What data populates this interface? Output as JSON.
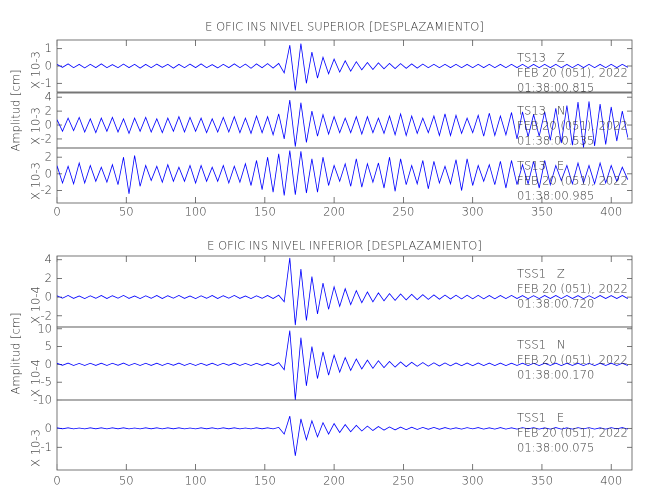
{
  "chart_data": [
    {
      "type": "line",
      "title": "E OFIC INS NIVEL SUPERIOR [DESPLAZAMIENTO]",
      "ylabel": "Amplitud [cm]",
      "color": "#0000ff",
      "xlim": [
        0,
        415
      ],
      "xticks": [
        0,
        50,
        100,
        150,
        200,
        250,
        300,
        350,
        400
      ],
      "x": [
        0,
        4,
        8,
        12,
        16,
        20,
        24,
        28,
        32,
        36,
        40,
        44,
        48,
        52,
        56,
        60,
        64,
        68,
        72,
        76,
        80,
        84,
        88,
        92,
        96,
        100,
        104,
        108,
        112,
        116,
        120,
        124,
        128,
        132,
        136,
        140,
        144,
        148,
        152,
        156,
        160,
        164,
        168,
        172,
        176,
        180,
        184,
        188,
        192,
        196,
        200,
        204,
        208,
        212,
        216,
        220,
        224,
        228,
        232,
        236,
        240,
        244,
        248,
        252,
        256,
        260,
        264,
        268,
        272,
        276,
        280,
        284,
        288,
        292,
        296,
        300,
        304,
        308,
        312,
        316,
        320,
        324,
        328,
        332,
        336,
        340,
        344,
        348,
        352,
        356,
        360,
        364,
        368,
        372,
        376,
        380,
        384,
        388,
        392,
        396,
        400,
        404,
        408,
        412
      ],
      "panels": [
        {
          "scale_label": "X 10-3",
          "ylim": [
            -1.5,
            1.5
          ],
          "yticks": [
            1,
            0,
            -1
          ],
          "labels": [
            "TS13   Z",
            "FEB 20 (051), 2022",
            "01:38:00.815"
          ],
          "values": [
            0.1,
            -0.08,
            0.12,
            -0.1,
            0.09,
            -0.11,
            0.1,
            -0.09,
            0.12,
            -0.1,
            0.08,
            -0.1,
            0.11,
            -0.09,
            0.1,
            -0.12,
            0.09,
            -0.1,
            0.11,
            -0.08,
            0.1,
            -0.12,
            0.09,
            -0.1,
            0.11,
            -0.09,
            0.12,
            -0.1,
            0.08,
            -0.11,
            0.1,
            -0.09,
            0.12,
            -0.1,
            0.11,
            -0.13,
            0.12,
            -0.1,
            0.14,
            -0.12,
            0.15,
            -0.4,
            1.2,
            -1.4,
            1.3,
            -1.0,
            0.8,
            -0.7,
            0.5,
            -0.45,
            0.4,
            -0.35,
            0.3,
            -0.3,
            0.25,
            -0.22,
            0.2,
            -0.2,
            0.18,
            -0.16,
            0.15,
            -0.15,
            0.14,
            -0.13,
            0.12,
            -0.12,
            0.11,
            -0.1,
            0.1,
            -0.1,
            0.1,
            -0.09,
            0.1,
            -0.1,
            0.09,
            -0.1,
            0.1,
            -0.09,
            0.1,
            -0.1,
            0.09,
            -0.1,
            0.1,
            -0.09,
            0.1,
            -0.1,
            0.09,
            -0.1,
            0.1,
            -0.09,
            0.1,
            -0.1,
            0.09,
            -0.1,
            0.1,
            -0.09,
            0.1,
            -0.1,
            0.09,
            -0.1,
            0.1,
            -0.09,
            0.1,
            -0.08
          ]
        },
        {
          "scale_label": "X 10-3",
          "ylim": [
            -3.3,
            4.6
          ],
          "yticks": [
            4,
            2,
            0,
            -2
          ],
          "labels": [
            "TS13   N",
            "FEB 20 (051), 2022",
            "01:38:00.535"
          ],
          "values": [
            0.8,
            -0.9,
            1.0,
            -0.8,
            1.1,
            -1.0,
            0.9,
            -1.1,
            1.0,
            -0.9,
            1.1,
            -1.0,
            0.9,
            -1.2,
            1.0,
            -0.9,
            1.1,
            -1.0,
            0.9,
            -1.1,
            1.0,
            -0.9,
            1.2,
            -1.0,
            1.1,
            -0.9,
            1.0,
            -1.1,
            0.9,
            -1.0,
            1.1,
            -1.0,
            1.2,
            -1.1,
            1.0,
            -1.2,
            1.3,
            -1.1,
            1.2,
            -1.4,
            1.6,
            -2.0,
            3.6,
            -3.1,
            3.2,
            -2.5,
            2.0,
            -1.6,
            1.5,
            -1.3,
            1.2,
            -1.1,
            1.0,
            -1.1,
            1.2,
            -1.3,
            1.2,
            -1.1,
            1.0,
            -1.2,
            1.3,
            -1.4,
            1.6,
            -1.5,
            1.3,
            -1.2,
            1.0,
            -1.1,
            1.3,
            -1.5,
            1.6,
            -1.5,
            1.4,
            -1.2,
            1.0,
            -1.1,
            1.4,
            -1.6,
            1.7,
            -1.5,
            1.3,
            -1.4,
            1.8,
            -2.0,
            1.9,
            -1.7,
            1.5,
            -1.6,
            1.9,
            -2.2,
            2.4,
            -2.6,
            2.8,
            -2.9,
            3.3,
            -3.2,
            3.4,
            -3.0,
            3.0,
            -2.8,
            2.6,
            -2.3,
            2.0,
            -1.8
          ]
        },
        {
          "scale_label": "X 10-3",
          "ylim": [
            -3.5,
            3.1
          ],
          "yticks": [
            2,
            0,
            -2
          ],
          "labels": [
            "TS13   E",
            "FEB 20 (051), 2022",
            "01:38:00.985"
          ],
          "values": [
            1.0,
            -1.1,
            0.9,
            -1.2,
            1.3,
            -1.1,
            1.0,
            -0.9,
            0.8,
            -1.0,
            1.1,
            -1.3,
            2.0,
            -2.4,
            2.2,
            -1.5,
            1.0,
            -0.8,
            0.9,
            -1.0,
            1.1,
            -0.9,
            0.8,
            -0.9,
            1.0,
            -1.1,
            1.0,
            -0.9,
            0.8,
            -0.9,
            1.0,
            -1.1,
            0.9,
            -1.0,
            1.2,
            -1.4,
            1.6,
            -1.9,
            2.0,
            -2.2,
            2.4,
            -2.6,
            2.8,
            -2.5,
            2.7,
            -2.3,
            1.8,
            -2.2,
            2.0,
            -1.4,
            1.0,
            -0.9,
            1.2,
            -1.5,
            1.8,
            -1.6,
            1.2,
            -1.0,
            1.3,
            -1.7,
            2.0,
            -2.1,
            1.8,
            -1.3,
            1.0,
            -1.2,
            1.6,
            -1.8,
            1.5,
            -1.1,
            0.9,
            -1.2,
            1.7,
            -2.0,
            1.8,
            -1.4,
            1.0,
            -0.9,
            1.1,
            -1.3,
            1.5,
            -1.7,
            1.6,
            -1.3,
            1.1,
            -1.2,
            1.5,
            -1.7,
            1.6,
            -1.3,
            1.0,
            -0.8,
            1.0,
            -1.2,
            1.3,
            -1.1,
            1.0,
            -1.2,
            1.3,
            -1.1,
            1.0,
            -0.9,
            0.8,
            -0.7
          ]
        }
      ]
    },
    {
      "type": "line",
      "title": "E OFIC INS NIVEL INFERIOR [DESPLAZAMIENTO]",
      "ylabel": "Amplitud [cm]",
      "color": "#0000ff",
      "xlim": [
        0,
        415
      ],
      "xticks": [
        0,
        50,
        100,
        150,
        200,
        250,
        300,
        350,
        400
      ],
      "x": [
        0,
        4,
        8,
        12,
        16,
        20,
        24,
        28,
        32,
        36,
        40,
        44,
        48,
        52,
        56,
        60,
        64,
        68,
        72,
        76,
        80,
        84,
        88,
        92,
        96,
        100,
        104,
        108,
        112,
        116,
        120,
        124,
        128,
        132,
        136,
        140,
        144,
        148,
        152,
        156,
        160,
        164,
        168,
        172,
        176,
        180,
        184,
        188,
        192,
        196,
        200,
        204,
        208,
        212,
        216,
        220,
        224,
        228,
        232,
        236,
        240,
        244,
        248,
        252,
        256,
        260,
        264,
        268,
        272,
        276,
        280,
        284,
        288,
        292,
        296,
        300,
        304,
        308,
        312,
        316,
        320,
        324,
        328,
        332,
        336,
        340,
        344,
        348,
        352,
        356,
        360,
        364,
        368,
        372,
        376,
        380,
        384,
        388,
        392,
        396,
        400,
        404,
        408,
        412
      ],
      "panels": [
        {
          "scale_label": "X 10-4",
          "ylim": [
            -3.2,
            4.4
          ],
          "yticks": [
            4,
            2,
            0,
            -2
          ],
          "labels": [
            "TSS1   Z",
            "FEB 20 (051), 2022",
            "01:38:00.720"
          ],
          "values": [
            0.15,
            -0.12,
            0.18,
            -0.14,
            0.12,
            -0.16,
            0.14,
            -0.13,
            0.17,
            -0.15,
            0.15,
            -0.12,
            0.18,
            -0.14,
            0.12,
            -0.16,
            0.14,
            -0.13,
            0.17,
            -0.15,
            0.15,
            -0.12,
            0.18,
            -0.14,
            0.12,
            -0.16,
            0.14,
            -0.13,
            0.17,
            -0.15,
            0.15,
            -0.12,
            0.18,
            -0.14,
            0.12,
            -0.16,
            0.14,
            -0.13,
            0.17,
            -0.15,
            0.2,
            -0.5,
            4.2,
            -3.0,
            3.0,
            -2.5,
            2.2,
            -1.8,
            1.5,
            -1.3,
            1.1,
            -1.0,
            0.9,
            -0.8,
            0.7,
            -0.6,
            0.55,
            -0.5,
            0.45,
            -0.4,
            0.38,
            -0.35,
            0.33,
            -0.3,
            0.3,
            -0.28,
            0.26,
            -0.25,
            0.24,
            -0.22,
            0.22,
            -0.2,
            0.2,
            -0.19,
            0.2,
            -0.18,
            0.19,
            -0.18,
            0.17,
            -0.18,
            0.17,
            -0.16,
            0.18,
            -0.15,
            0.16,
            -0.17,
            0.15,
            -0.16,
            0.17,
            -0.15,
            0.17,
            -0.16,
            0.18,
            -0.15,
            0.16,
            -0.17,
            0.15,
            -0.16,
            0.17,
            -0.15,
            0.16,
            -0.15,
            0.17,
            -0.16
          ]
        },
        {
          "scale_label": "X 10-4",
          "ylim": [
            -10,
            10.5
          ],
          "yticks": [
            10,
            5,
            0,
            -5,
            -10
          ],
          "labels": [
            "TSS1   N",
            "FEB 20 (051), 2022",
            "01:38:00.170"
          ],
          "values": [
            0.3,
            -0.25,
            0.35,
            -0.3,
            0.28,
            -0.32,
            0.3,
            -0.27,
            0.33,
            -0.3,
            0.3,
            -0.25,
            0.35,
            -0.3,
            0.28,
            -0.32,
            0.3,
            -0.27,
            0.33,
            -0.3,
            0.3,
            -0.25,
            0.35,
            -0.3,
            0.28,
            -0.32,
            0.3,
            -0.27,
            0.33,
            -0.3,
            0.3,
            -0.25,
            0.35,
            -0.3,
            0.28,
            -0.32,
            0.3,
            -0.27,
            0.33,
            -0.3,
            0.5,
            -1.5,
            9.5,
            -10,
            7.5,
            -6,
            5,
            -4,
            3.5,
            -3,
            2.6,
            -2.2,
            1.9,
            -1.7,
            1.5,
            -1.3,
            1.2,
            -1.1,
            1.0,
            -0.9,
            0.8,
            -0.75,
            0.7,
            -0.65,
            0.6,
            -0.55,
            0.5,
            -0.5,
            0.45,
            -0.45,
            0.42,
            -0.4,
            0.4,
            -0.38,
            0.4,
            -0.36,
            0.38,
            -0.35,
            0.36,
            -0.34,
            0.35,
            -0.33,
            0.34,
            -0.32,
            0.33,
            -0.34,
            0.32,
            -0.33,
            0.34,
            -0.32,
            0.35,
            -0.33,
            0.34,
            -0.32,
            0.33,
            -0.34,
            0.32,
            -0.33,
            0.34,
            -0.32,
            0.33,
            -0.3,
            0.32,
            -0.3
          ]
        },
        {
          "scale_label": "X 10-3",
          "ylim": [
            -2.2,
            1.5
          ],
          "yticks": [
            0,
            -1
          ],
          "labels": [
            "TSS1   E",
            "FEB 20 (051), 2022",
            "01:38:00.075"
          ],
          "values": [
            0.03,
            -0.02,
            0.03,
            -0.03,
            0.02,
            -0.03,
            0.03,
            -0.02,
            0.03,
            -0.03,
            0.03,
            -0.02,
            0.03,
            -0.03,
            0.02,
            -0.03,
            0.03,
            -0.02,
            0.03,
            -0.03,
            0.03,
            -0.02,
            0.03,
            -0.03,
            0.02,
            -0.03,
            0.03,
            -0.02,
            0.03,
            -0.03,
            0.03,
            -0.02,
            0.03,
            -0.03,
            0.02,
            -0.03,
            0.03,
            -0.02,
            0.03,
            -0.03,
            0.05,
            -0.3,
            0.65,
            -1.45,
            0.5,
            -0.6,
            0.4,
            -0.45,
            0.3,
            -0.3,
            0.25,
            -0.22,
            0.2,
            -0.18,
            0.16,
            -0.14,
            0.12,
            -0.11,
            0.1,
            -0.09,
            0.08,
            -0.08,
            0.07,
            -0.07,
            0.06,
            -0.06,
            0.05,
            -0.05,
            0.05,
            -0.05,
            0.04,
            -0.04,
            0.03,
            -0.04,
            0.04,
            -0.03,
            0.04,
            -0.04,
            0.03,
            -0.04,
            0.04,
            -0.04,
            0.03,
            -0.04,
            0.04,
            -0.03,
            0.04,
            -0.04,
            0.03,
            -0.04,
            0.04,
            -0.04,
            0.03,
            -0.04,
            0.04,
            -0.03,
            0.04,
            -0.04,
            0.03,
            -0.04,
            0.04,
            -0.03,
            0.04,
            -0.04
          ]
        }
      ]
    }
  ]
}
